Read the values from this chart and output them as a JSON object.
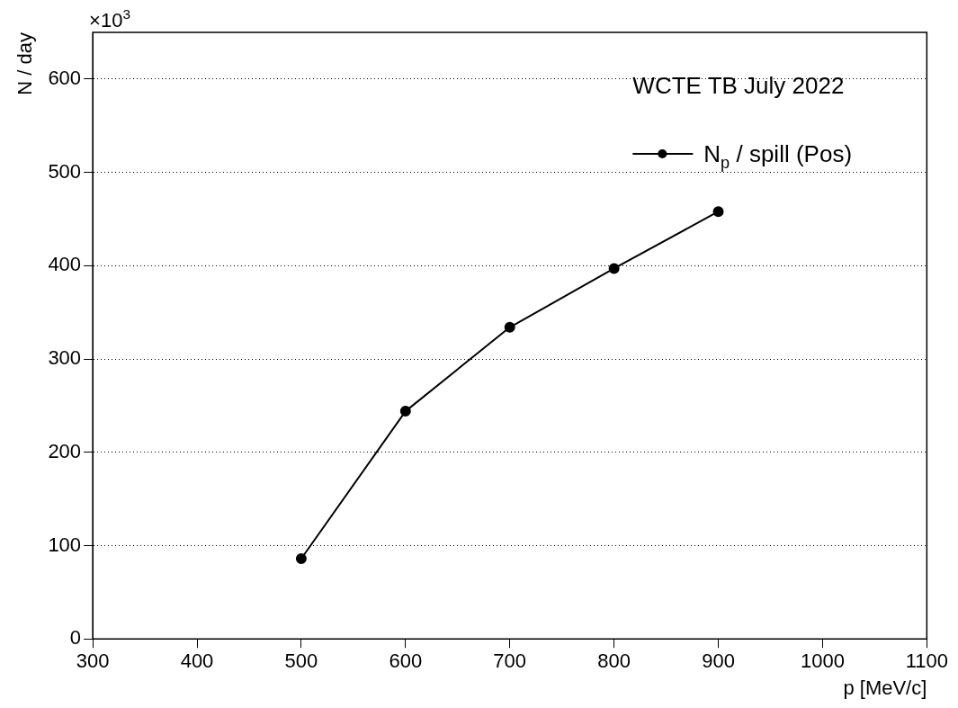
{
  "chart_data": {
    "type": "line",
    "title": "WCTE TB July 2022",
    "xlabel": "p [MeV/c]",
    "ylabel": "N / day",
    "annotations": [
      "×10$^{3}$"
    ],
    "x": [
      500,
      600,
      700,
      800,
      900
    ],
    "series": [
      {
        "name": "N$_{p}$ / spill (Pos)",
        "color": "#000000",
        "values": [
          86,
          244,
          334,
          397,
          458
        ]
      }
    ],
    "xlim": [
      300,
      1100
    ],
    "xticks": [
      300,
      400,
      500,
      600,
      700,
      800,
      900,
      1000,
      1100
    ],
    "ylim": [
      0,
      650
    ],
    "yticks": [
      0,
      100,
      200,
      300,
      400,
      500,
      600
    ],
    "grid": "y",
    "legend": "top right",
    "marker": "circle",
    "line_style": "solid"
  }
}
